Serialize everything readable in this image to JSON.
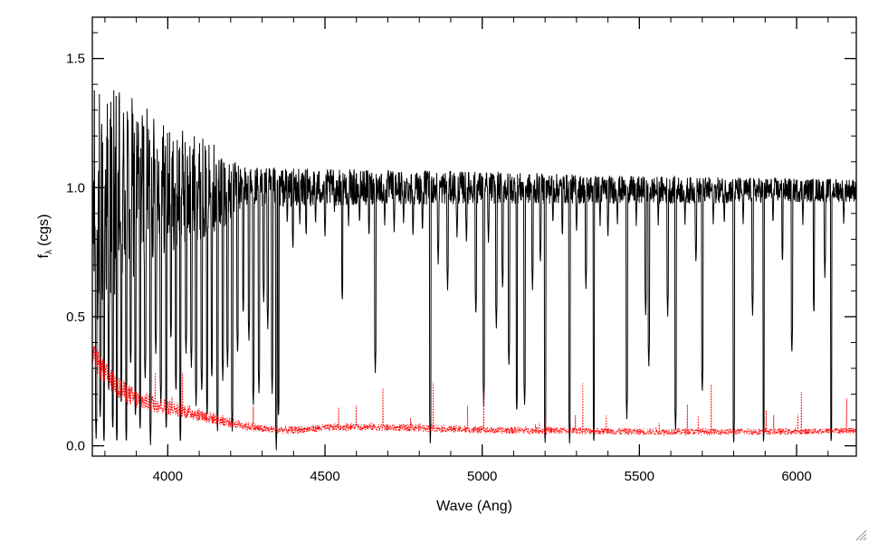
{
  "chart_data": {
    "type": "line",
    "xlabel": "Wave (Ang)",
    "ylabel": "f",
    "ylabel_subscript": "λ",
    "ylabel_unit": "(cgs)",
    "xlim": [
      3760,
      6190
    ],
    "ylim": [
      -0.04,
      1.66
    ],
    "x_major_ticks": [
      4000,
      4500,
      5000,
      5500,
      6000
    ],
    "x_tick_labels": [
      "4000",
      "4500",
      "5000",
      "5500",
      "6000"
    ],
    "x_minor_step": 100,
    "y_major_ticks": [
      0.0,
      0.5,
      1.0,
      1.5
    ],
    "y_tick_labels": [
      "0.0",
      "0.5",
      "1.0",
      "1.5"
    ],
    "y_minor_step": 0.1,
    "grid": false,
    "legend": "none",
    "series": [
      {
        "style": "solid",
        "color": "#000000",
        "continuum": [
          [
            3760,
            0.9
          ],
          [
            3800,
            0.95
          ],
          [
            3900,
            1.0
          ],
          [
            4000,
            1.0
          ],
          [
            4200,
            1.0
          ],
          [
            4500,
            1.0
          ],
          [
            5000,
            1.0
          ],
          [
            5500,
            0.99
          ],
          [
            6000,
            0.99
          ],
          [
            6190,
            0.99
          ]
        ],
        "noise": [
          [
            3760,
            0.55
          ],
          [
            3850,
            0.45
          ],
          [
            3950,
            0.32
          ],
          [
            4050,
            0.25
          ],
          [
            4150,
            0.2
          ],
          [
            4250,
            0.09
          ],
          [
            4500,
            0.08
          ],
          [
            5000,
            0.07
          ],
          [
            5500,
            0.06
          ],
          [
            6190,
            0.05
          ]
        ],
        "absorption_lines": [
          [
            3772,
            0.02
          ],
          [
            3785,
            0.1
          ],
          [
            3797,
            0.0
          ],
          [
            3812,
            0.2
          ],
          [
            3825,
            0.05
          ],
          [
            3838,
            0.0
          ],
          [
            3852,
            0.15
          ],
          [
            3868,
            0.0
          ],
          [
            3882,
            0.3
          ],
          [
            3897,
            0.1
          ],
          [
            3912,
            0.05
          ],
          [
            3928,
            0.25
          ],
          [
            3945,
            0.0
          ],
          [
            3962,
            0.35
          ],
          [
            3978,
            0.15
          ],
          [
            3995,
            0.05
          ],
          [
            4010,
            0.4
          ],
          [
            4026,
            0.2
          ],
          [
            4040,
            0.0
          ],
          [
            4058,
            0.35
          ],
          [
            4075,
            0.3
          ],
          [
            4090,
            0.15
          ],
          [
            4108,
            0.2
          ],
          [
            4125,
            0.1
          ],
          [
            4140,
            0.25
          ],
          [
            4158,
            0.05
          ],
          [
            4175,
            0.25
          ],
          [
            4190,
            0.3
          ],
          [
            4205,
            0.05
          ],
          [
            4222,
            0.35
          ],
          [
            4240,
            0.5
          ],
          [
            4258,
            0.4
          ],
          [
            4272,
            0.15
          ],
          [
            4290,
            0.2
          ],
          [
            4305,
            0.55
          ],
          [
            4318,
            0.45
          ],
          [
            4332,
            0.2
          ],
          [
            4345,
            -0.02
          ],
          [
            4352,
            0.1
          ],
          [
            4380,
            0.85
          ],
          [
            4398,
            0.75
          ],
          [
            4420,
            0.85
          ],
          [
            4440,
            0.8
          ],
          [
            4470,
            0.85
          ],
          [
            4500,
            0.8
          ],
          [
            4530,
            0.9
          ],
          [
            4555,
            0.55
          ],
          [
            4575,
            0.85
          ],
          [
            4610,
            0.85
          ],
          [
            4640,
            0.8
          ],
          [
            4660,
            0.28
          ],
          [
            4690,
            0.85
          ],
          [
            4720,
            0.82
          ],
          [
            4750,
            0.85
          ],
          [
            4780,
            0.8
          ],
          [
            4810,
            0.82
          ],
          [
            4835,
            0.0
          ],
          [
            4860,
            0.7
          ],
          [
            4890,
            0.6
          ],
          [
            4920,
            0.8
          ],
          [
            4950,
            0.78
          ],
          [
            4980,
            0.5
          ],
          [
            5005,
            0.15
          ],
          [
            5020,
            0.78
          ],
          [
            5045,
            0.45
          ],
          [
            5065,
            0.6
          ],
          [
            5085,
            0.3
          ],
          [
            5110,
            0.12
          ],
          [
            5135,
            0.15
          ],
          [
            5160,
            0.6
          ],
          [
            5185,
            0.7
          ],
          [
            5200,
            0.0
          ],
          [
            5225,
            0.85
          ],
          [
            5255,
            0.8
          ],
          [
            5278,
            0.0
          ],
          [
            5300,
            0.82
          ],
          [
            5330,
            0.6
          ],
          [
            5355,
            0.0
          ],
          [
            5375,
            0.85
          ],
          [
            5400,
            0.8
          ],
          [
            5430,
            0.85
          ],
          [
            5460,
            0.1
          ],
          [
            5490,
            0.85
          ],
          [
            5520,
            0.5
          ],
          [
            5530,
            0.3
          ],
          [
            5560,
            0.85
          ],
          [
            5590,
            0.5
          ],
          [
            5615,
            0.05
          ],
          [
            5645,
            0.85
          ],
          [
            5680,
            0.7
          ],
          [
            5700,
            0.2
          ],
          [
            5735,
            0.85
          ],
          [
            5770,
            0.85
          ],
          [
            5800,
            0.0
          ],
          [
            5830,
            0.85
          ],
          [
            5860,
            0.5
          ],
          [
            5895,
            0.0
          ],
          [
            5925,
            0.85
          ],
          [
            5955,
            0.7
          ],
          [
            5985,
            0.35
          ],
          [
            6020,
            0.85
          ],
          [
            6055,
            0.5
          ],
          [
            6090,
            0.65
          ],
          [
            6110,
            0.0
          ],
          [
            6150,
            0.85
          ]
        ]
      },
      {
        "style": "dotted",
        "color": "#ff0000",
        "continuum": [
          [
            3760,
            0.35
          ],
          [
            3800,
            0.28
          ],
          [
            3850,
            0.22
          ],
          [
            3900,
            0.18
          ],
          [
            4000,
            0.15
          ],
          [
            4100,
            0.12
          ],
          [
            4200,
            0.09
          ],
          [
            4300,
            0.065
          ],
          [
            4400,
            0.06
          ],
          [
            4500,
            0.07
          ],
          [
            4600,
            0.075
          ],
          [
            4700,
            0.07
          ],
          [
            4800,
            0.07
          ],
          [
            5000,
            0.06
          ],
          [
            5200,
            0.06
          ],
          [
            5500,
            0.055
          ],
          [
            6000,
            0.055
          ],
          [
            6190,
            0.06
          ]
        ],
        "noise": [
          [
            3760,
            0.05
          ],
          [
            4000,
            0.03
          ],
          [
            4300,
            0.015
          ],
          [
            6190,
            0.012
          ]
        ]
      }
    ]
  }
}
